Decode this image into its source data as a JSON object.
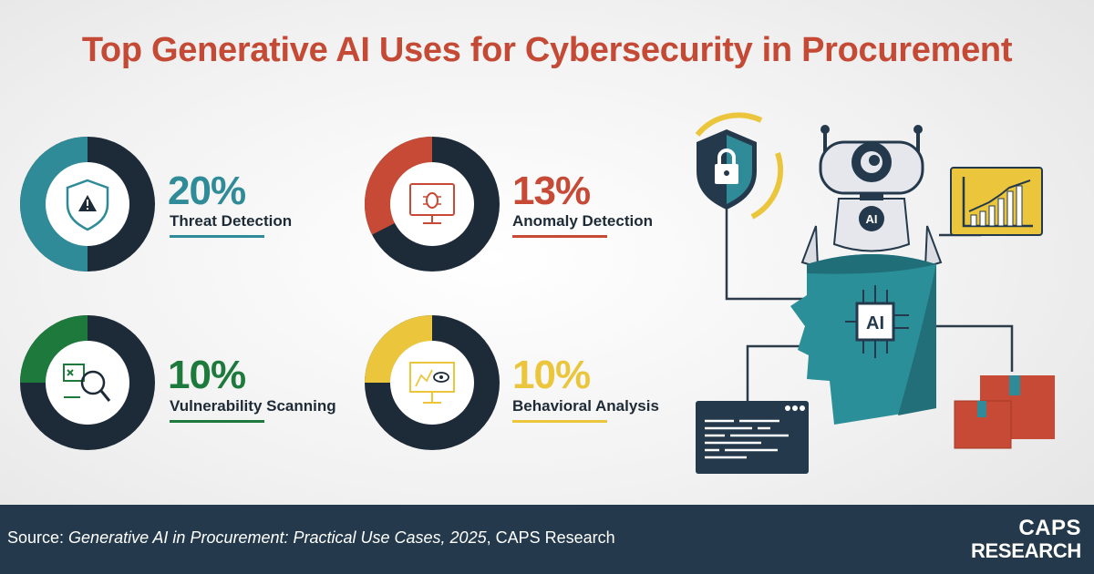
{
  "title": "Top Generative AI Uses for Cybersecurity in Procurement",
  "chart_data": {
    "type": "pie",
    "title": "Top Generative AI Uses for Cybersecurity in Procurement",
    "series": [
      {
        "name": "Threat Detection",
        "value": 20,
        "label": "20%",
        "color": "#2e8b97",
        "icon": "shield-warning-icon"
      },
      {
        "name": "Anomaly Detection",
        "value": 13,
        "label": "13%",
        "color": "#c64a35",
        "icon": "monitor-bug-icon"
      },
      {
        "name": "Vulnerability Scanning",
        "value": 10,
        "label": "10%",
        "color": "#1e7a3c",
        "icon": "magnifier-scan-icon"
      },
      {
        "name": "Behavioral Analysis",
        "value": 10,
        "label": "10%",
        "color": "#ebc63c",
        "icon": "presentation-eye-icon"
      }
    ],
    "remainder_color": "#1d2b38"
  },
  "footer": {
    "source_prefix": "Source: ",
    "source_title": "Generative AI in Procurement: Practical Use Cases, 2025",
    "source_suffix": ", CAPS Research",
    "brand_line1": "CAPS",
    "brand_line2": "RESEARCH"
  },
  "illustration": {
    "ai_chip_label": "AI",
    "robot_badge_label": "AI"
  }
}
